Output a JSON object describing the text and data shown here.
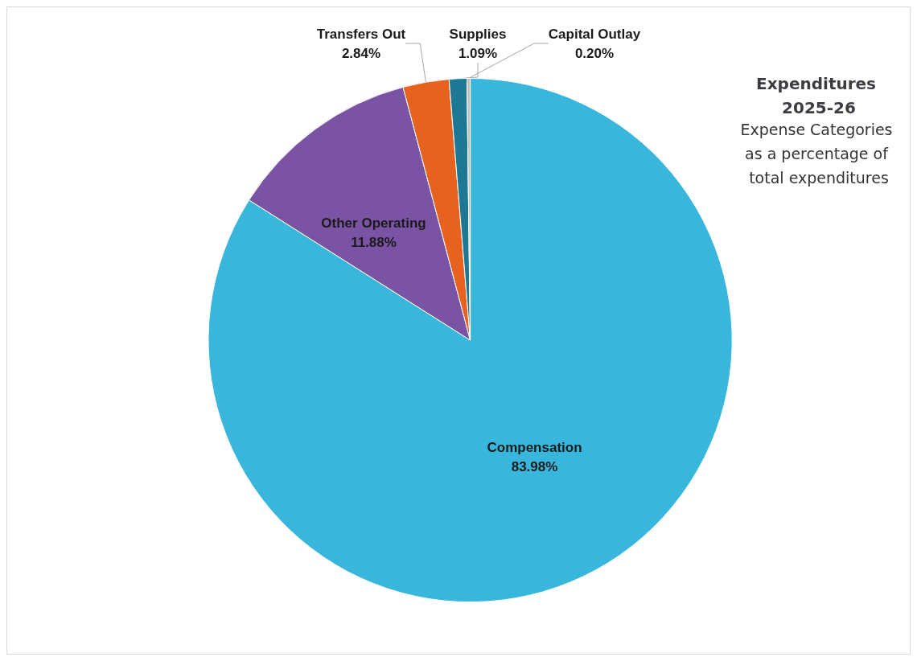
{
  "chart_data": {
    "type": "pie",
    "title": "Expenditures 2025-26",
    "subtitle": "Expense Categories as a percentage of total expenditures",
    "categories": [
      "Compensation",
      "Other Operating",
      "Transfers Out",
      "Supplies",
      "Capital Outlay"
    ],
    "values": [
      83.98,
      11.88,
      2.84,
      1.09,
      0.2
    ],
    "value_labels": [
      "83.98%",
      "11.88%",
      "2.84%",
      "1.09%",
      "0.20%"
    ],
    "colors": [
      "#38b6dc",
      "#7b53a4",
      "#e8621f",
      "#1d7894",
      "#c0c0c0"
    ],
    "legend": false
  }
}
